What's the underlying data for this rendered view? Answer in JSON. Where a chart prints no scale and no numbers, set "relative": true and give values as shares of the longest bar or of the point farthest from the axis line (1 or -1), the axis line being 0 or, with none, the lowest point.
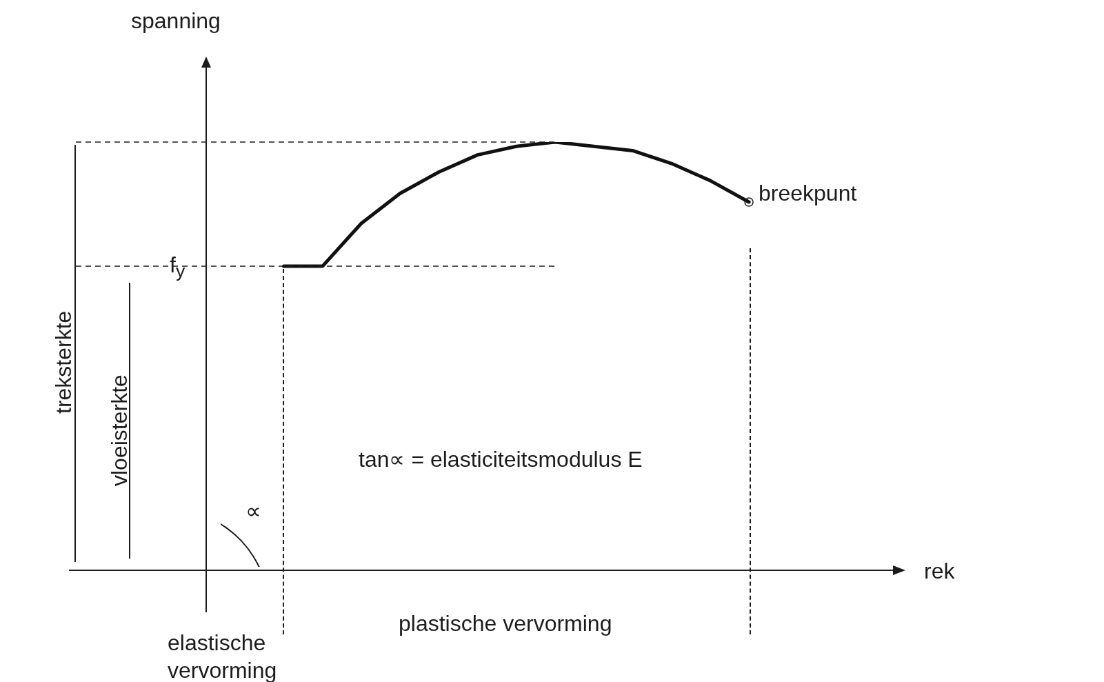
{
  "chart_data": {
    "type": "line",
    "relative": true,
    "xlabel": "rek",
    "ylabel": "spanning",
    "categories": [
      null,
      null,
      null,
      null,
      null,
      null,
      null,
      null,
      null,
      null,
      null,
      null,
      null,
      null,
      null,
      null,
      null,
      null,
      null
    ],
    "series": [
      {
        "color": "#111111",
        "values": [
          null,
          null,
          0.71,
          0.71,
          0.81,
          0.88,
          0.93,
          0.97,
          0.99,
          1.0,
          0.99,
          0.98,
          0.95,
          0.91,
          0.86,
          null,
          null,
          null,
          null
        ]
      }
    ],
    "ref_lines": [
      {
        "axis": "y",
        "value": 0.71,
        "label": "f$_{y}$",
        "line_style": "dashed",
        "color": "#1c1c1c"
      },
      {
        "axis": "y",
        "value": 1.0,
        "line_style": "dashed",
        "color": "#1c1c1c"
      }
    ],
    "annotations": [
      "breekpunt",
      "treksterkte",
      "vloeisterkte",
      "tan∝ = elasticiteitsmodulus E",
      "∝",
      "elastische vervorming",
      "plastische vervorming"
    ],
    "marker": "none",
    "line_style": "solid",
    "legend": false
  }
}
